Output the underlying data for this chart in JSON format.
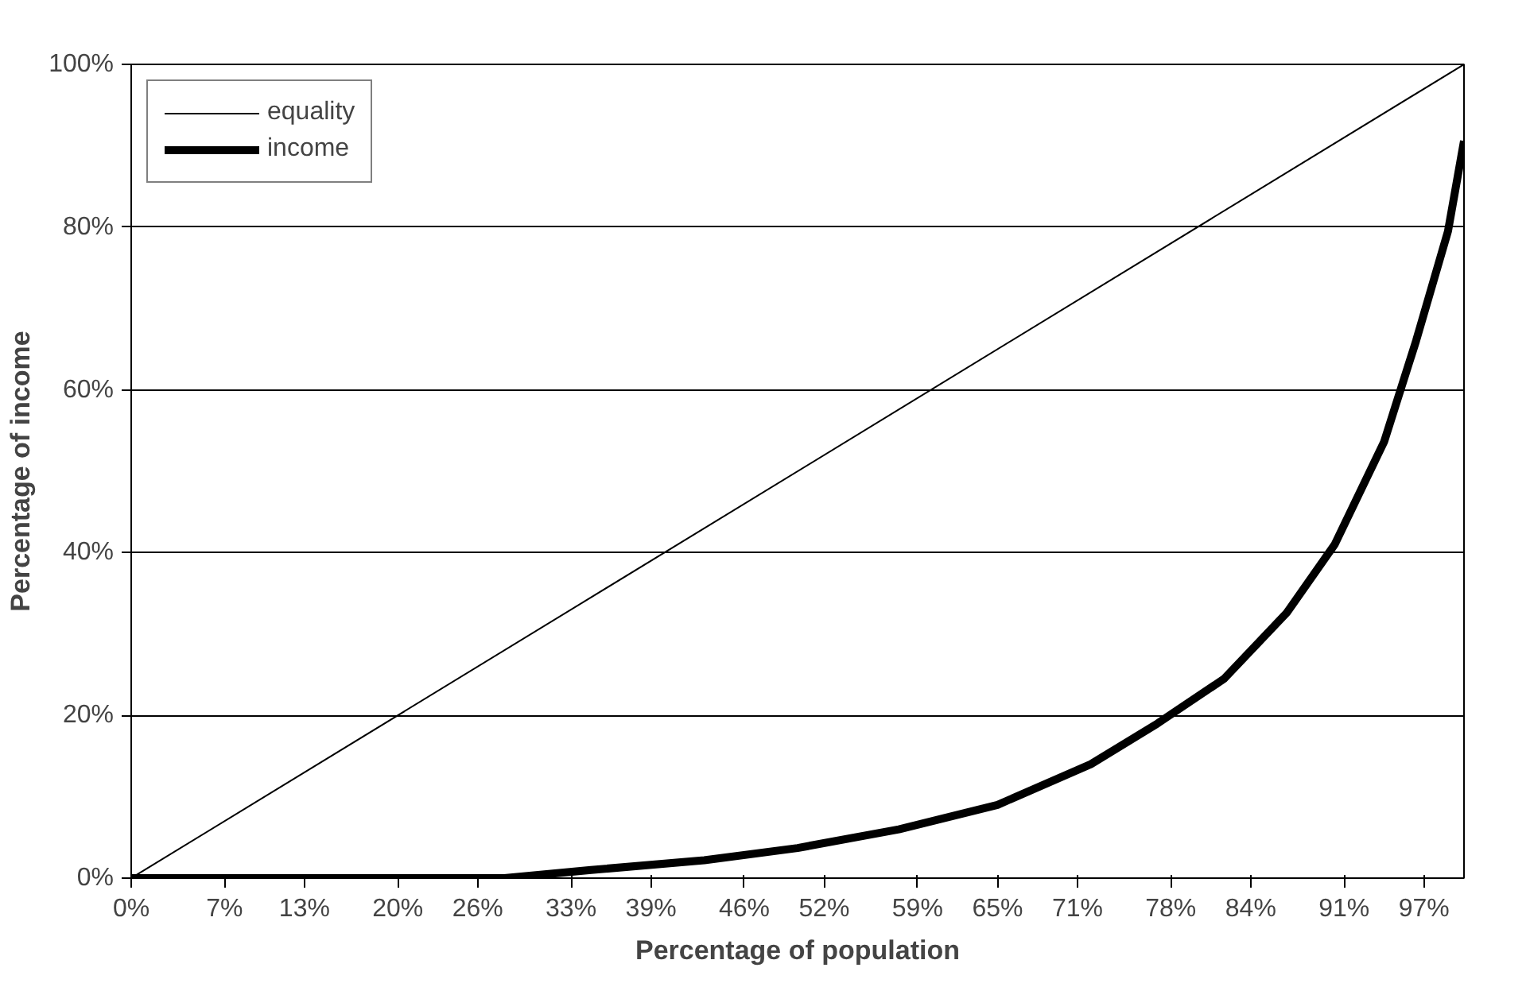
{
  "chart_data": {
    "type": "line",
    "xlabel": "Percentage of population",
    "ylabel": "Percentage of income",
    "series": [
      {
        "name": "equality",
        "color": "#000000",
        "x": [
          0,
          100
        ],
        "values": [
          0,
          100
        ]
      },
      {
        "name": "income",
        "color": "#000000",
        "x": [
          0,
          28,
          34.5,
          43,
          50,
          57.6,
          65,
          72,
          77,
          82,
          86.7,
          90.3,
          94,
          96.4,
          98.8,
          100
        ],
        "values": [
          0,
          0,
          1,
          2.2,
          3.7,
          6,
          9,
          14,
          19,
          24.5,
          32.6,
          41,
          53.6,
          66,
          79.5,
          90.6
        ]
      }
    ],
    "xlim": [
      0,
      100
    ],
    "ylim": [
      0,
      100
    ],
    "xticks": [
      {
        "value": 0,
        "label": "0%"
      },
      {
        "value": 7,
        "label": "7%"
      },
      {
        "value": 13,
        "label": "13%"
      },
      {
        "value": 20,
        "label": "20%"
      },
      {
        "value": 26,
        "label": "26%"
      },
      {
        "value": 33,
        "label": "33%"
      },
      {
        "value": 39,
        "label": "39%"
      },
      {
        "value": 46,
        "label": "46%"
      },
      {
        "value": 52,
        "label": "52%"
      },
      {
        "value": 59,
        "label": "59%"
      },
      {
        "value": 65,
        "label": "65%"
      },
      {
        "value": 71,
        "label": "71%"
      },
      {
        "value": 78,
        "label": "78%"
      },
      {
        "value": 84,
        "label": "84%"
      },
      {
        "value": 91,
        "label": "91%"
      },
      {
        "value": 97,
        "label": "97%"
      }
    ],
    "yticks": [
      {
        "value": 0,
        "label": "0%"
      },
      {
        "value": 20,
        "label": "20%"
      },
      {
        "value": 40,
        "label": "40%"
      },
      {
        "value": 60,
        "label": "60%"
      },
      {
        "value": 80,
        "label": "80%"
      },
      {
        "value": 100,
        "label": "100%"
      }
    ],
    "grid": "y",
    "legend": "top left",
    "marker": "none",
    "line_style": "solid"
  }
}
